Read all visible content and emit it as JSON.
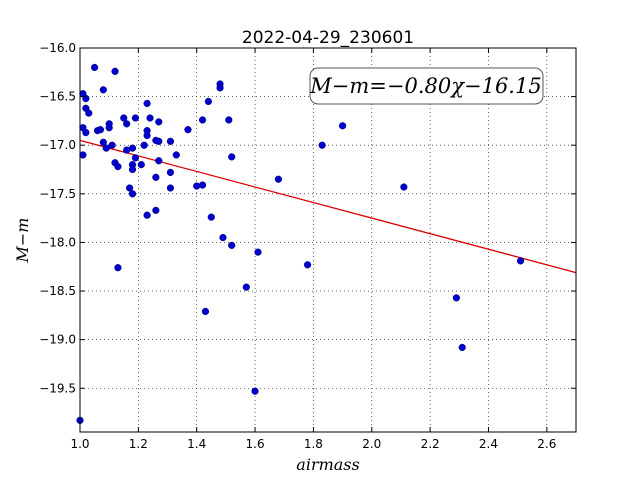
{
  "chart_data": {
    "type": "scatter",
    "title": "2022-04-29_230601",
    "xlabel": "airmass",
    "ylabel": "M−m",
    "xlim": [
      1.0,
      2.7
    ],
    "ylim": [
      -16.0,
      -19.95
    ],
    "y_inverted": true,
    "grid": true,
    "grid_style": "dotted",
    "xticks": [
      1.0,
      1.2,
      1.4,
      1.6,
      1.8,
      2.0,
      2.2,
      2.4,
      2.6
    ],
    "xtick_labels": [
      "1.0",
      "1.2",
      "1.4",
      "1.6",
      "1.8",
      "2.0",
      "2.2",
      "2.4",
      "2.6"
    ],
    "yticks": [
      -16.0,
      -16.5,
      -17.0,
      -17.5,
      -18.0,
      -18.5,
      -19.0,
      -19.5
    ],
    "ytick_labels": [
      "−16.0",
      "−16.5",
      "−17.0",
      "−17.5",
      "−18.0",
      "−18.5",
      "−19.0",
      "−19.5"
    ],
    "annotation": "M−m=−0.80χ−16.15",
    "annotation_position": "top-right",
    "marker_color": "#0000cc",
    "line_color": "#dd0000",
    "fit": {
      "slope": -0.8,
      "intercept": -16.15,
      "x_range": [
        1.0,
        2.7
      ]
    },
    "points": [
      {
        "x": 1.0,
        "y": -19.83
      },
      {
        "x": 1.01,
        "y": -16.47
      },
      {
        "x": 1.02,
        "y": -16.52
      },
      {
        "x": 1.02,
        "y": -16.62
      },
      {
        "x": 1.03,
        "y": -16.67
      },
      {
        "x": 1.01,
        "y": -16.82
      },
      {
        "x": 1.02,
        "y": -16.87
      },
      {
        "x": 1.01,
        "y": -17.1
      },
      {
        "x": 1.05,
        "y": -16.2
      },
      {
        "x": 1.06,
        "y": -16.85
      },
      {
        "x": 1.07,
        "y": -16.84
      },
      {
        "x": 1.08,
        "y": -16.43
      },
      {
        "x": 1.08,
        "y": -16.97
      },
      {
        "x": 1.09,
        "y": -17.03
      },
      {
        "x": 1.1,
        "y": -16.78
      },
      {
        "x": 1.1,
        "y": -16.82
      },
      {
        "x": 1.11,
        "y": -17.0
      },
      {
        "x": 1.12,
        "y": -16.24
      },
      {
        "x": 1.12,
        "y": -17.18
      },
      {
        "x": 1.13,
        "y": -17.22
      },
      {
        "x": 1.13,
        "y": -18.26
      },
      {
        "x": 1.15,
        "y": -16.72
      },
      {
        "x": 1.16,
        "y": -16.78
      },
      {
        "x": 1.16,
        "y": -17.05
      },
      {
        "x": 1.17,
        "y": -17.44
      },
      {
        "x": 1.18,
        "y": -17.03
      },
      {
        "x": 1.18,
        "y": -17.2
      },
      {
        "x": 1.18,
        "y": -17.25
      },
      {
        "x": 1.18,
        "y": -17.5
      },
      {
        "x": 1.19,
        "y": -17.13
      },
      {
        "x": 1.19,
        "y": -16.72
      },
      {
        "x": 1.21,
        "y": -17.2
      },
      {
        "x": 1.22,
        "y": -17.0
      },
      {
        "x": 1.23,
        "y": -16.57
      },
      {
        "x": 1.23,
        "y": -16.85
      },
      {
        "x": 1.23,
        "y": -16.9
      },
      {
        "x": 1.23,
        "y": -17.72
      },
      {
        "x": 1.24,
        "y": -16.72
      },
      {
        "x": 1.26,
        "y": -16.95
      },
      {
        "x": 1.26,
        "y": -17.33
      },
      {
        "x": 1.27,
        "y": -16.96
      },
      {
        "x": 1.27,
        "y": -16.76
      },
      {
        "x": 1.27,
        "y": -17.16
      },
      {
        "x": 1.26,
        "y": -17.67
      },
      {
        "x": 1.31,
        "y": -16.96
      },
      {
        "x": 1.31,
        "y": -17.28
      },
      {
        "x": 1.31,
        "y": -17.44
      },
      {
        "x": 1.33,
        "y": -17.1
      },
      {
        "x": 1.37,
        "y": -16.84
      },
      {
        "x": 1.4,
        "y": -17.42
      },
      {
        "x": 1.42,
        "y": -17.41
      },
      {
        "x": 1.42,
        "y": -16.74
      },
      {
        "x": 1.43,
        "y": -18.71
      },
      {
        "x": 1.44,
        "y": -16.55
      },
      {
        "x": 1.45,
        "y": -17.74
      },
      {
        "x": 1.48,
        "y": -16.37
      },
      {
        "x": 1.48,
        "y": -16.41
      },
      {
        "x": 1.49,
        "y": -17.95
      },
      {
        "x": 1.51,
        "y": -16.74
      },
      {
        "x": 1.52,
        "y": -18.03
      },
      {
        "x": 1.52,
        "y": -17.12
      },
      {
        "x": 1.57,
        "y": -18.46
      },
      {
        "x": 1.6,
        "y": -19.53
      },
      {
        "x": 1.61,
        "y": -18.1
      },
      {
        "x": 1.68,
        "y": -17.35
      },
      {
        "x": 1.78,
        "y": -18.23
      },
      {
        "x": 1.83,
        "y": -17.0
      },
      {
        "x": 1.9,
        "y": -16.8
      },
      {
        "x": 2.11,
        "y": -17.43
      },
      {
        "x": 2.29,
        "y": -18.57
      },
      {
        "x": 2.31,
        "y": -19.08
      },
      {
        "x": 2.51,
        "y": -18.19
      }
    ]
  }
}
